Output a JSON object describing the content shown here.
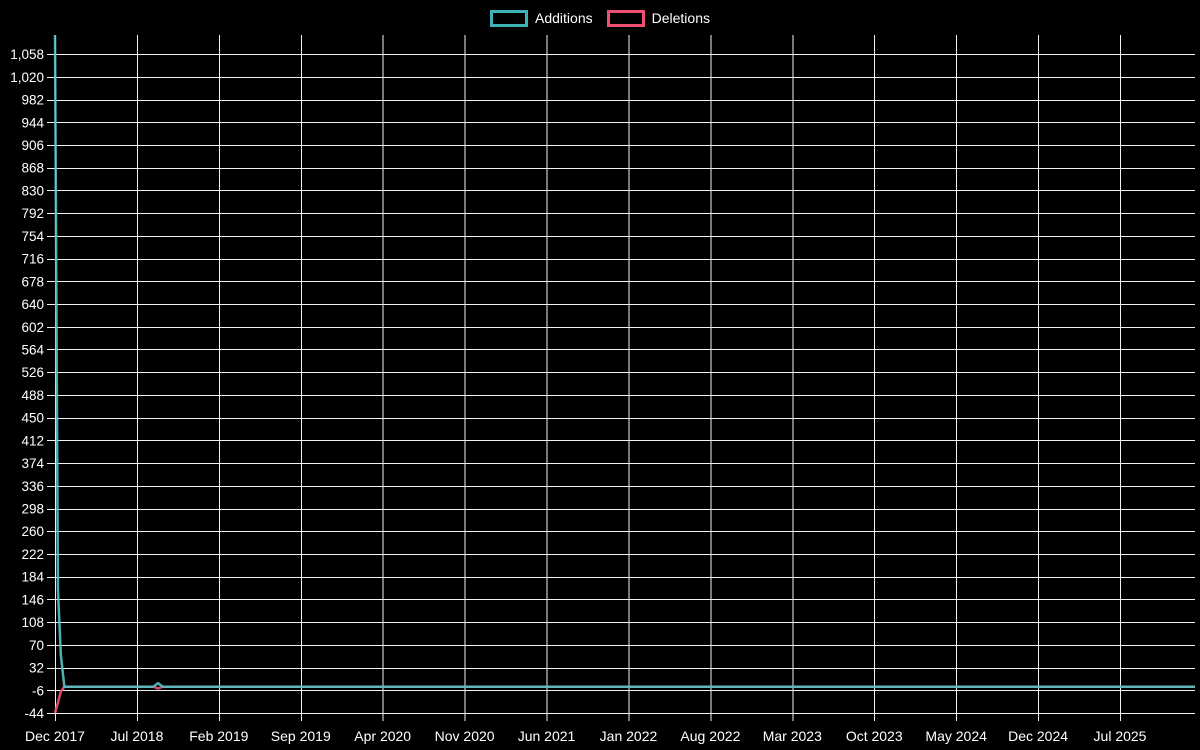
{
  "legend": {
    "additions": "Additions",
    "deletions": "Deletions"
  },
  "colors": {
    "additions": "#3eb3b5",
    "additions_line": "#55c3c6",
    "deletions": "#ee5170",
    "background": "#000000",
    "grid": "#f2f2f2",
    "text": "#ffffff"
  },
  "chart_data": {
    "type": "line",
    "title": "",
    "legend_entries": [
      "Additions",
      "Deletions"
    ],
    "legend_position": "top-center",
    "grid": true,
    "x_tick_labels": [
      "Dec 2017",
      "Jul 2018",
      "Feb 2019",
      "Sep 2019",
      "Apr 2020",
      "Nov 2020",
      "Jun 2021",
      "Jan 2022",
      "Aug 2022",
      "Mar 2023",
      "Oct 2023",
      "May 2024",
      "Dec 2024",
      "Jul 2025"
    ],
    "x_tick_month_positions": [
      0,
      7,
      14,
      21,
      28,
      35,
      42,
      49,
      56,
      63,
      70,
      77,
      84,
      91
    ],
    "x_months_total": 97.4,
    "y_tick_labels": [
      "1,058",
      "1,020",
      "982",
      "944",
      "906",
      "868",
      "830",
      "792",
      "754",
      "716",
      "678",
      "640",
      "602",
      "564",
      "526",
      "488",
      "450",
      "412",
      "374",
      "336",
      "298",
      "260",
      "222",
      "184",
      "146",
      "108",
      "70",
      "32",
      "-6",
      "-44"
    ],
    "y_ticks": [
      1058,
      1020,
      982,
      944,
      906,
      868,
      830,
      792,
      754,
      716,
      678,
      640,
      602,
      564,
      526,
      488,
      450,
      412,
      374,
      336,
      298,
      260,
      222,
      184,
      146,
      108,
      70,
      32,
      -6,
      -44
    ],
    "ylim": [
      -44,
      1090
    ],
    "series": [
      {
        "name": "Deletions",
        "color_key": "deletions",
        "points_month_value": [
          [
            0,
            -44
          ],
          [
            0.25,
            -27
          ],
          [
            0.5,
            -8
          ],
          [
            0.8,
            0
          ],
          [
            8.4,
            0
          ],
          [
            8.8,
            -3
          ],
          [
            9.2,
            0
          ],
          [
            97.4,
            0
          ]
        ]
      },
      {
        "name": "Additions",
        "color_key": "additions_line",
        "points_month_value": [
          [
            0,
            1090
          ],
          [
            0.25,
            162
          ],
          [
            0.5,
            53
          ],
          [
            0.8,
            0
          ],
          [
            8.4,
            0
          ],
          [
            8.8,
            6
          ],
          [
            9.2,
            0
          ],
          [
            97.4,
            0
          ]
        ]
      }
    ]
  }
}
